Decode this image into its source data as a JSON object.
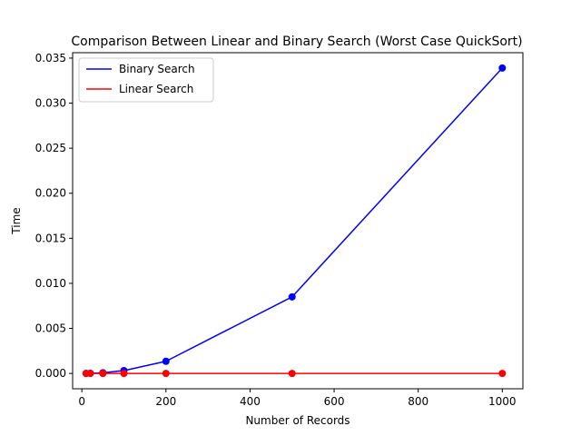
{
  "chart_data": {
    "type": "line",
    "title": "Comparison Between Linear and Binary Search (Worst Case QuickSort)",
    "xlabel": "Number of Records",
    "ylabel": "Time",
    "x": [
      10,
      20,
      50,
      100,
      200,
      500,
      1000
    ],
    "series": [
      {
        "name": "Binary Search",
        "color": "#0000ff",
        "values": [
          0.0,
          2e-05,
          8e-05,
          0.00032,
          0.00135,
          0.0085,
          0.0339
        ]
      },
      {
        "name": "Linear Search",
        "color": "#ff0000",
        "values": [
          0.0,
          0.0,
          0.0,
          0.0,
          0.0,
          0.0,
          0.0
        ]
      }
    ],
    "xlim": [
      -22,
      1049
    ],
    "ylim": [
      -0.0017,
      0.0356
    ],
    "xticks": [
      0,
      200,
      400,
      600,
      800,
      1000
    ],
    "xtick_labels": [
      "0",
      "200",
      "400",
      "600",
      "800",
      "1000"
    ],
    "yticks": [
      0.0,
      0.005,
      0.01,
      0.015,
      0.02,
      0.025,
      0.03,
      0.035
    ],
    "ytick_labels": [
      "0.000",
      "0.005",
      "0.010",
      "0.015",
      "0.020",
      "0.025",
      "0.030",
      "0.035"
    ],
    "grid": false,
    "legend_position": "top-left"
  }
}
